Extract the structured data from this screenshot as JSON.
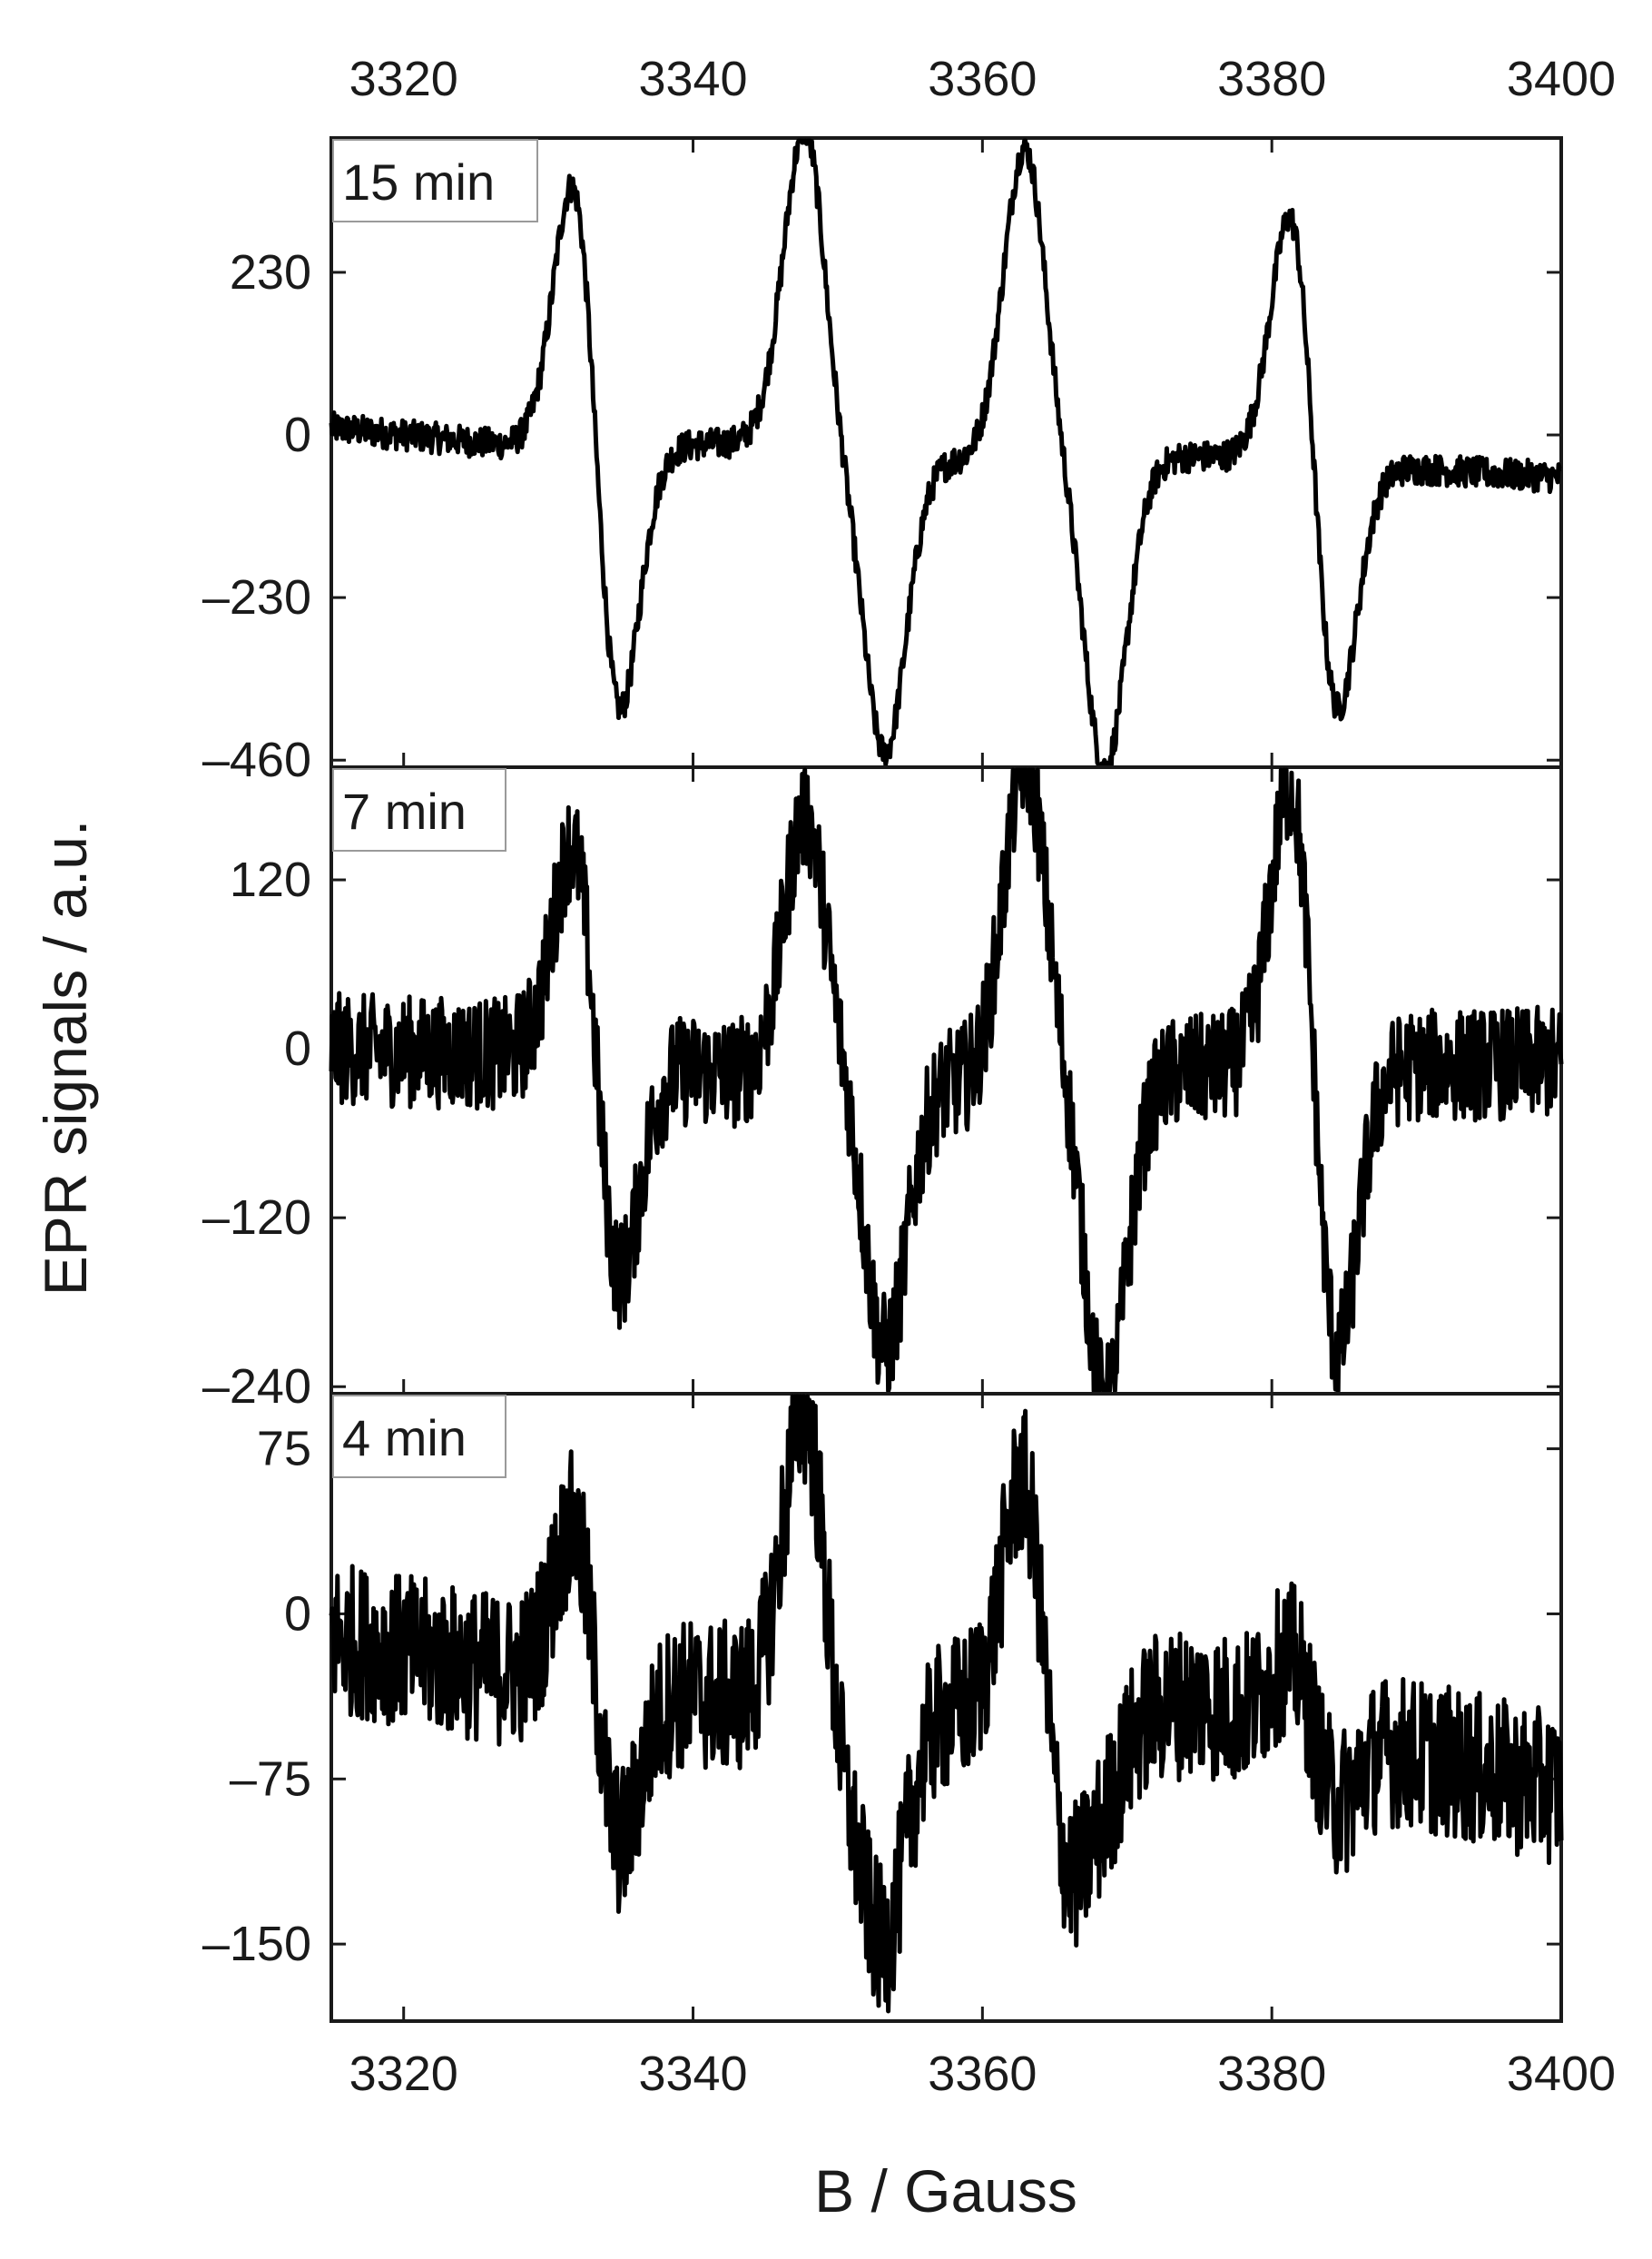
{
  "chart_data": {
    "type": "line",
    "xlabel": "B / Gauss",
    "ylabel": "EPR signals / a.u.",
    "xlim": [
      3315,
      3400
    ],
    "x_ticks": [
      3320,
      3340,
      3360,
      3380,
      3400
    ],
    "x_tick_labels": [
      "3320",
      "3340",
      "3360",
      "3380",
      "3400"
    ],
    "line_color": "#000000",
    "grid": false,
    "lines": [
      {
        "center": 3333.3,
        "width": 1.7
      },
      {
        "center": 3349.1,
        "width": 1.7
      },
      {
        "center": 3351.9,
        "width": 1.7
      },
      {
        "center": 3364.3,
        "width": 1.7
      },
      {
        "center": 3367.1,
        "width": 1.7
      },
      {
        "center": 3382.9,
        "width": 1.7
      }
    ],
    "panels": [
      {
        "label": "15 min",
        "ylim": [
          -470,
          420
        ],
        "yticks": [
          230,
          0,
          -230,
          -460
        ],
        "ytick_labels": [
          "230",
          "0",
          "–230",
          "–460"
        ],
        "amplitudes": [
          370,
          390,
          360,
          385,
          375,
          345
        ],
        "baseline": [
          [
            3315,
            10
          ],
          [
            3330,
            -20
          ],
          [
            3345,
            -10
          ],
          [
            3360,
            -40
          ],
          [
            3375,
            -30
          ],
          [
            3400,
            -60
          ]
        ],
        "noise": 22
      },
      {
        "label": "7 min",
        "ylim": [
          -245,
          200
        ],
        "yticks": [
          120,
          0,
          -120,
          -240
        ],
        "ytick_labels": [
          "120",
          "0",
          "–120",
          "–240"
        ],
        "amplitudes": [
          150,
          160,
          165,
          195,
          200,
          200
        ],
        "baseline": [
          [
            3315,
            0
          ],
          [
            3330,
            -5
          ],
          [
            3345,
            -20
          ],
          [
            3360,
            -25
          ],
          [
            3375,
            -15
          ],
          [
            3400,
            -10
          ]
        ],
        "noise": 40
      },
      {
        "label": "4 min",
        "ylim": [
          -185,
          100
        ],
        "yticks": [
          75,
          0,
          -75,
          -150
        ],
        "ytick_labels": [
          "75",
          "0",
          "–75",
          "–150"
        ],
        "amplitudes": [
          70,
          120,
          85,
          100,
          30,
          30
        ],
        "baseline": [
          [
            3315,
            -10
          ],
          [
            3330,
            -30
          ],
          [
            3345,
            -40
          ],
          [
            3360,
            -45
          ],
          [
            3375,
            -40
          ],
          [
            3400,
            -80
          ]
        ],
        "noise": 35
      }
    ]
  }
}
